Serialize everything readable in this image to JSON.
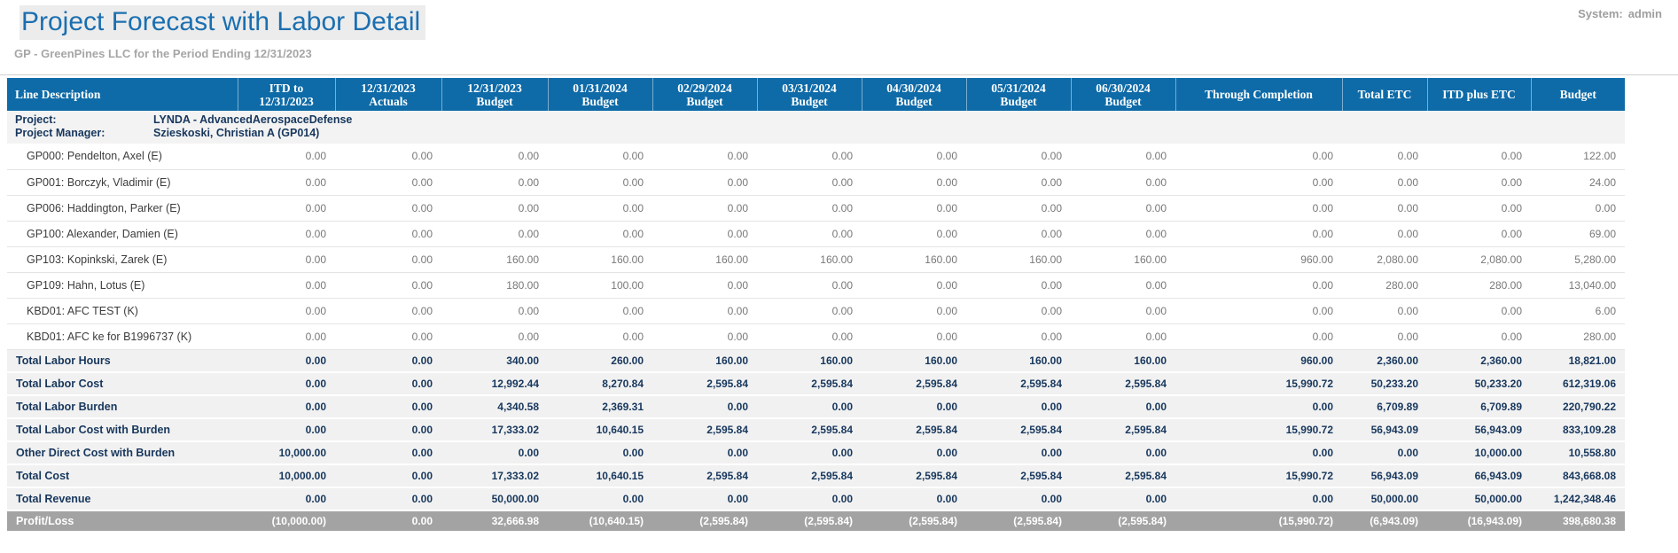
{
  "page": {
    "title": "Project Forecast with Labor Detail",
    "subtitle": "GP - GreenPines LLC for the Period Ending 12/31/2023",
    "system_label": "System:",
    "system_value": "admin"
  },
  "colors": {
    "accent_blue": "#0e6ba8",
    "title_blue": "#1b6fb0",
    "navy_text": "#17375d",
    "profit_row_gray": "#a3a3a3"
  },
  "table": {
    "columns": [
      {
        "line1": "Line Description",
        "line2": ""
      },
      {
        "line1": "ITD to",
        "line2": "12/31/2023"
      },
      {
        "line1": "12/31/2023",
        "line2": "Actuals"
      },
      {
        "line1": "12/31/2023",
        "line2": "Budget"
      },
      {
        "line1": "01/31/2024",
        "line2": "Budget"
      },
      {
        "line1": "02/29/2024",
        "line2": "Budget"
      },
      {
        "line1": "03/31/2024",
        "line2": "Budget"
      },
      {
        "line1": "04/30/2024",
        "line2": "Budget"
      },
      {
        "line1": "05/31/2024",
        "line2": "Budget"
      },
      {
        "line1": "06/30/2024",
        "line2": "Budget"
      },
      {
        "line1": "Through Completion",
        "line2": ""
      },
      {
        "line1": "Total ETC",
        "line2": ""
      },
      {
        "line1": "ITD plus ETC",
        "line2": ""
      },
      {
        "line1": "Budget",
        "line2": ""
      }
    ],
    "project_info": {
      "row1_label": "Project:",
      "row1_value": "LYNDA - AdvancedAerospaceDefense",
      "row2_label": "Project Manager:",
      "row2_value": "Szieskoski, Christian A (GP014)"
    },
    "rows": [
      {
        "type": "detail",
        "label": "GP000: Pendelton, Axel (E)",
        "values": [
          "0.00",
          "0.00",
          "0.00",
          "0.00",
          "0.00",
          "0.00",
          "0.00",
          "0.00",
          "0.00",
          "0.00",
          "0.00",
          "0.00",
          "122.00"
        ]
      },
      {
        "type": "detail",
        "label": "GP001: Borczyk, Vladimir (E)",
        "values": [
          "0.00",
          "0.00",
          "0.00",
          "0.00",
          "0.00",
          "0.00",
          "0.00",
          "0.00",
          "0.00",
          "0.00",
          "0.00",
          "0.00",
          "24.00"
        ]
      },
      {
        "type": "detail",
        "label": "GP006: Haddington, Parker (E)",
        "values": [
          "0.00",
          "0.00",
          "0.00",
          "0.00",
          "0.00",
          "0.00",
          "0.00",
          "0.00",
          "0.00",
          "0.00",
          "0.00",
          "0.00",
          "0.00"
        ]
      },
      {
        "type": "detail",
        "label": "GP100: Alexander, Damien (E)",
        "values": [
          "0.00",
          "0.00",
          "0.00",
          "0.00",
          "0.00",
          "0.00",
          "0.00",
          "0.00",
          "0.00",
          "0.00",
          "0.00",
          "0.00",
          "69.00"
        ]
      },
      {
        "type": "detail",
        "label": "GP103: Kopinkski, Zarek (E)",
        "values": [
          "0.00",
          "0.00",
          "160.00",
          "160.00",
          "160.00",
          "160.00",
          "160.00",
          "160.00",
          "160.00",
          "960.00",
          "2,080.00",
          "2,080.00",
          "5,280.00"
        ]
      },
      {
        "type": "detail",
        "label": "GP109: Hahn, Lotus (E)",
        "values": [
          "0.00",
          "0.00",
          "180.00",
          "100.00",
          "0.00",
          "0.00",
          "0.00",
          "0.00",
          "0.00",
          "0.00",
          "280.00",
          "280.00",
          "13,040.00"
        ]
      },
      {
        "type": "detail",
        "label": "KBD01: AFC TEST (K)",
        "values": [
          "0.00",
          "0.00",
          "0.00",
          "0.00",
          "0.00",
          "0.00",
          "0.00",
          "0.00",
          "0.00",
          "0.00",
          "0.00",
          "0.00",
          "6.00"
        ]
      },
      {
        "type": "detail",
        "label": "KBD01: AFC ke for B1996737 (K)",
        "values": [
          "0.00",
          "0.00",
          "0.00",
          "0.00",
          "0.00",
          "0.00",
          "0.00",
          "0.00",
          "0.00",
          "0.00",
          "0.00",
          "0.00",
          "280.00"
        ]
      },
      {
        "type": "total",
        "label": "Total Labor Hours",
        "values": [
          "0.00",
          "0.00",
          "340.00",
          "260.00",
          "160.00",
          "160.00",
          "160.00",
          "160.00",
          "160.00",
          "960.00",
          "2,360.00",
          "2,360.00",
          "18,821.00"
        ]
      },
      {
        "type": "total",
        "label": "Total Labor Cost",
        "values": [
          "0.00",
          "0.00",
          "12,992.44",
          "8,270.84",
          "2,595.84",
          "2,595.84",
          "2,595.84",
          "2,595.84",
          "2,595.84",
          "15,990.72",
          "50,233.20",
          "50,233.20",
          "612,319.06"
        ]
      },
      {
        "type": "total",
        "label": "Total Labor Burden",
        "values": [
          "0.00",
          "0.00",
          "4,340.58",
          "2,369.31",
          "0.00",
          "0.00",
          "0.00",
          "0.00",
          "0.00",
          "0.00",
          "6,709.89",
          "6,709.89",
          "220,790.22"
        ]
      },
      {
        "type": "total",
        "label": "Total Labor Cost with Burden",
        "values": [
          "0.00",
          "0.00",
          "17,333.02",
          "10,640.15",
          "2,595.84",
          "2,595.84",
          "2,595.84",
          "2,595.84",
          "2,595.84",
          "15,990.72",
          "56,943.09",
          "56,943.09",
          "833,109.28"
        ]
      },
      {
        "type": "total",
        "label": "Other Direct Cost with Burden",
        "values": [
          "10,000.00",
          "0.00",
          "0.00",
          "0.00",
          "0.00",
          "0.00",
          "0.00",
          "0.00",
          "0.00",
          "0.00",
          "0.00",
          "10,000.00",
          "10,558.80"
        ]
      },
      {
        "type": "total",
        "label": "Total Cost",
        "values": [
          "10,000.00",
          "0.00",
          "17,333.02",
          "10,640.15",
          "2,595.84",
          "2,595.84",
          "2,595.84",
          "2,595.84",
          "2,595.84",
          "15,990.72",
          "56,943.09",
          "66,943.09",
          "843,668.08"
        ]
      },
      {
        "type": "total",
        "label": "Total Revenue",
        "values": [
          "0.00",
          "0.00",
          "50,000.00",
          "0.00",
          "0.00",
          "0.00",
          "0.00",
          "0.00",
          "0.00",
          "0.00",
          "50,000.00",
          "50,000.00",
          "1,242,348.46"
        ]
      },
      {
        "type": "profit",
        "label": "Profit/Loss",
        "values": [
          "(10,000.00)",
          "0.00",
          "32,666.98",
          "(10,640.15)",
          "(2,595.84)",
          "(2,595.84)",
          "(2,595.84)",
          "(2,595.84)",
          "(2,595.84)",
          "(15,990.72)",
          "(6,943.09)",
          "(16,943.09)",
          "398,680.38"
        ]
      }
    ]
  }
}
